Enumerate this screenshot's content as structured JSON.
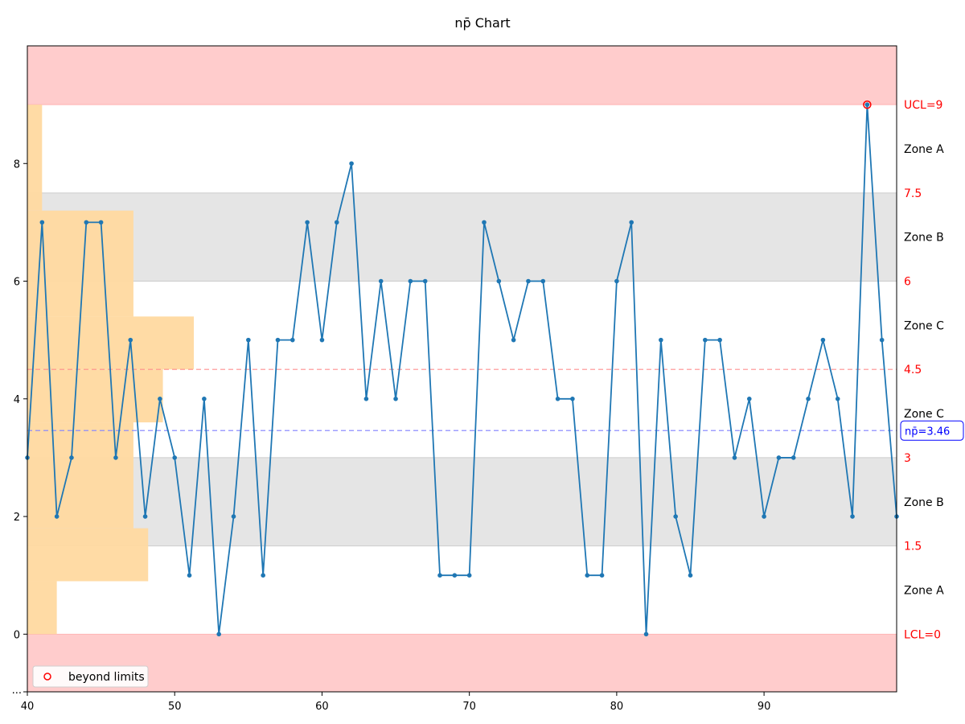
{
  "chart_data": {
    "type": "line",
    "title": "np̄ Chart",
    "xlabel": "",
    "ylabel": "",
    "xlim": [
      40,
      99
    ],
    "ylim": [
      -0.98,
      10
    ],
    "x_ticks": [
      "40",
      "50",
      "60",
      "70",
      "80",
      "90"
    ],
    "y_ticks": [
      "0",
      "2",
      "4",
      "6",
      "8"
    ],
    "y_bottom_tick": "...",
    "grid": false,
    "x": [
      40,
      41,
      42,
      43,
      44,
      45,
      46,
      47,
      48,
      49,
      50,
      51,
      52,
      53,
      54,
      55,
      56,
      57,
      58,
      59,
      60,
      61,
      62,
      63,
      64,
      65,
      66,
      67,
      68,
      69,
      70,
      71,
      72,
      73,
      74,
      75,
      76,
      77,
      78,
      79,
      80,
      81,
      82,
      83,
      84,
      85,
      86,
      87,
      88,
      89,
      90,
      91,
      92,
      93,
      94,
      95,
      96,
      97,
      98,
      99
    ],
    "series": [
      {
        "values": [
          3,
          7,
          2,
          3,
          7,
          7,
          3,
          5,
          2,
          4,
          3,
          1,
          4,
          0,
          2,
          5,
          1,
          5,
          5,
          7,
          5,
          7,
          8,
          4,
          6,
          4,
          6,
          6,
          1,
          1,
          1,
          7,
          6,
          5,
          6,
          6,
          4,
          4,
          1,
          1,
          6,
          7,
          0,
          5,
          2,
          1,
          5,
          5,
          3,
          4,
          2,
          3,
          3,
          4,
          5,
          4,
          2,
          9,
          5,
          2
        ],
        "color": "#1f77b4"
      }
    ],
    "center_line": {
      "label": "np̄=3.46",
      "value": 3.46,
      "color": "#0000ff"
    },
    "control_limits": {
      "ucl": {
        "label": "UCL=9",
        "value": 9
      },
      "lcl": {
        "label": "LCL=0",
        "value": 0
      },
      "color": "#ff0000"
    },
    "dashed_line_red": 4.5,
    "zone_boundaries": [
      {
        "label": "7.5",
        "value": 7.5
      },
      {
        "label": "6",
        "value": 6
      },
      {
        "label": "4.5",
        "value": 4.5
      },
      {
        "label": "3",
        "value": 3
      },
      {
        "label": "1.5",
        "value": 1.5
      }
    ],
    "zone_labels": [
      {
        "label": "Zone A",
        "value": 8.25
      },
      {
        "label": "Zone B",
        "value": 6.75
      },
      {
        "label": "Zone C",
        "value": 5.25
      },
      {
        "label": "Zone C",
        "value": 3.75
      },
      {
        "label": "Zone B",
        "value": 2.25
      },
      {
        "label": "Zone A",
        "value": 0.75
      }
    ],
    "bands": [
      {
        "from": 9,
        "to": 10,
        "color": "#ffcccc"
      },
      {
        "from": -0.98,
        "to": 0,
        "color": "#ffcccc"
      },
      {
        "from": 6,
        "to": 7.5,
        "color": "#e5e5e5"
      },
      {
        "from": 1.5,
        "to": 3,
        "color": "#e5e5e5"
      }
    ],
    "histogram": {
      "color": "#ffd9a0",
      "bars": [
        {
          "y0": 7.2,
          "y1": 9.0,
          "width": 1.0
        },
        {
          "y0": 5.4,
          "y1": 7.2,
          "width": 7.2
        },
        {
          "y0": 4.5,
          "y1": 5.4,
          "width": 11.3
        },
        {
          "y0": 3.6,
          "y1": 4.5,
          "width": 9.2
        },
        {
          "y0": 1.8,
          "y1": 3.6,
          "width": 7.2
        },
        {
          "y0": 0.9,
          "y1": 1.8,
          "width": 8.2
        },
        {
          "y0": 0.0,
          "y1": 0.9,
          "width": 2.0
        }
      ]
    },
    "highlighted_points": [
      {
        "x": 97,
        "y": 9
      }
    ],
    "legend": {
      "label": "beyond limits",
      "placement": "lower-left"
    }
  }
}
